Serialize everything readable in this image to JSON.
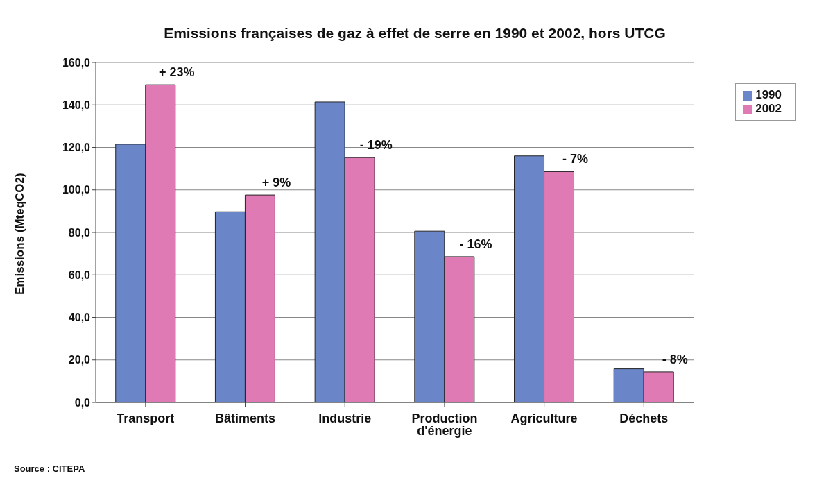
{
  "chart_data": {
    "type": "bar",
    "title": "Emissions françaises de gaz à effet de serre en 1990 et 2002, hors UTCG",
    "ylabel": "Emissions (MteqCO2)",
    "categories": [
      "Transport",
      "Bâtiments",
      "Industrie",
      "Production d'énergie",
      "Agriculture",
      "Déchets"
    ],
    "series": [
      {
        "name": "1990",
        "color": "#6b86c8",
        "values": [
          121.5,
          89.7,
          141.4,
          80.6,
          116.0,
          15.8
        ]
      },
      {
        "name": "2002",
        "color": "#e07ab4",
        "values": [
          149.5,
          97.6,
          115.2,
          68.6,
          108.6,
          14.4
        ]
      }
    ],
    "ylim": [
      0,
      160
    ],
    "yticks": [
      {
        "value": 0,
        "label": "0,0"
      },
      {
        "value": 20,
        "label": "20,0"
      },
      {
        "value": 40,
        "label": "40,0"
      },
      {
        "value": 60,
        "label": "60,0"
      },
      {
        "value": 80,
        "label": "80,0"
      },
      {
        "value": 100,
        "label": "100,0"
      },
      {
        "value": 120,
        "label": "120,0"
      },
      {
        "value": 140,
        "label": "140,0"
      },
      {
        "value": 160,
        "label": "160,0"
      }
    ],
    "grid": "y",
    "legend": "top right",
    "annotations": [
      {
        "text": "+ 23%",
        "x": "Transport",
        "y": 149.5
      },
      {
        "text": "+ 9%",
        "x": "Bâtiments",
        "y": 97.6
      },
      {
        "text": "- 19%",
        "x": "Industrie",
        "y": 115.2
      },
      {
        "text": "- 16%",
        "x": "Production d'énergie",
        "y": 68.6
      },
      {
        "text": "- 7%",
        "x": "Agriculture",
        "y": 108.6
      },
      {
        "text": "- 8%",
        "x": "Déchets",
        "y": 14.4
      },
      "Source : CITEPA"
    ]
  }
}
